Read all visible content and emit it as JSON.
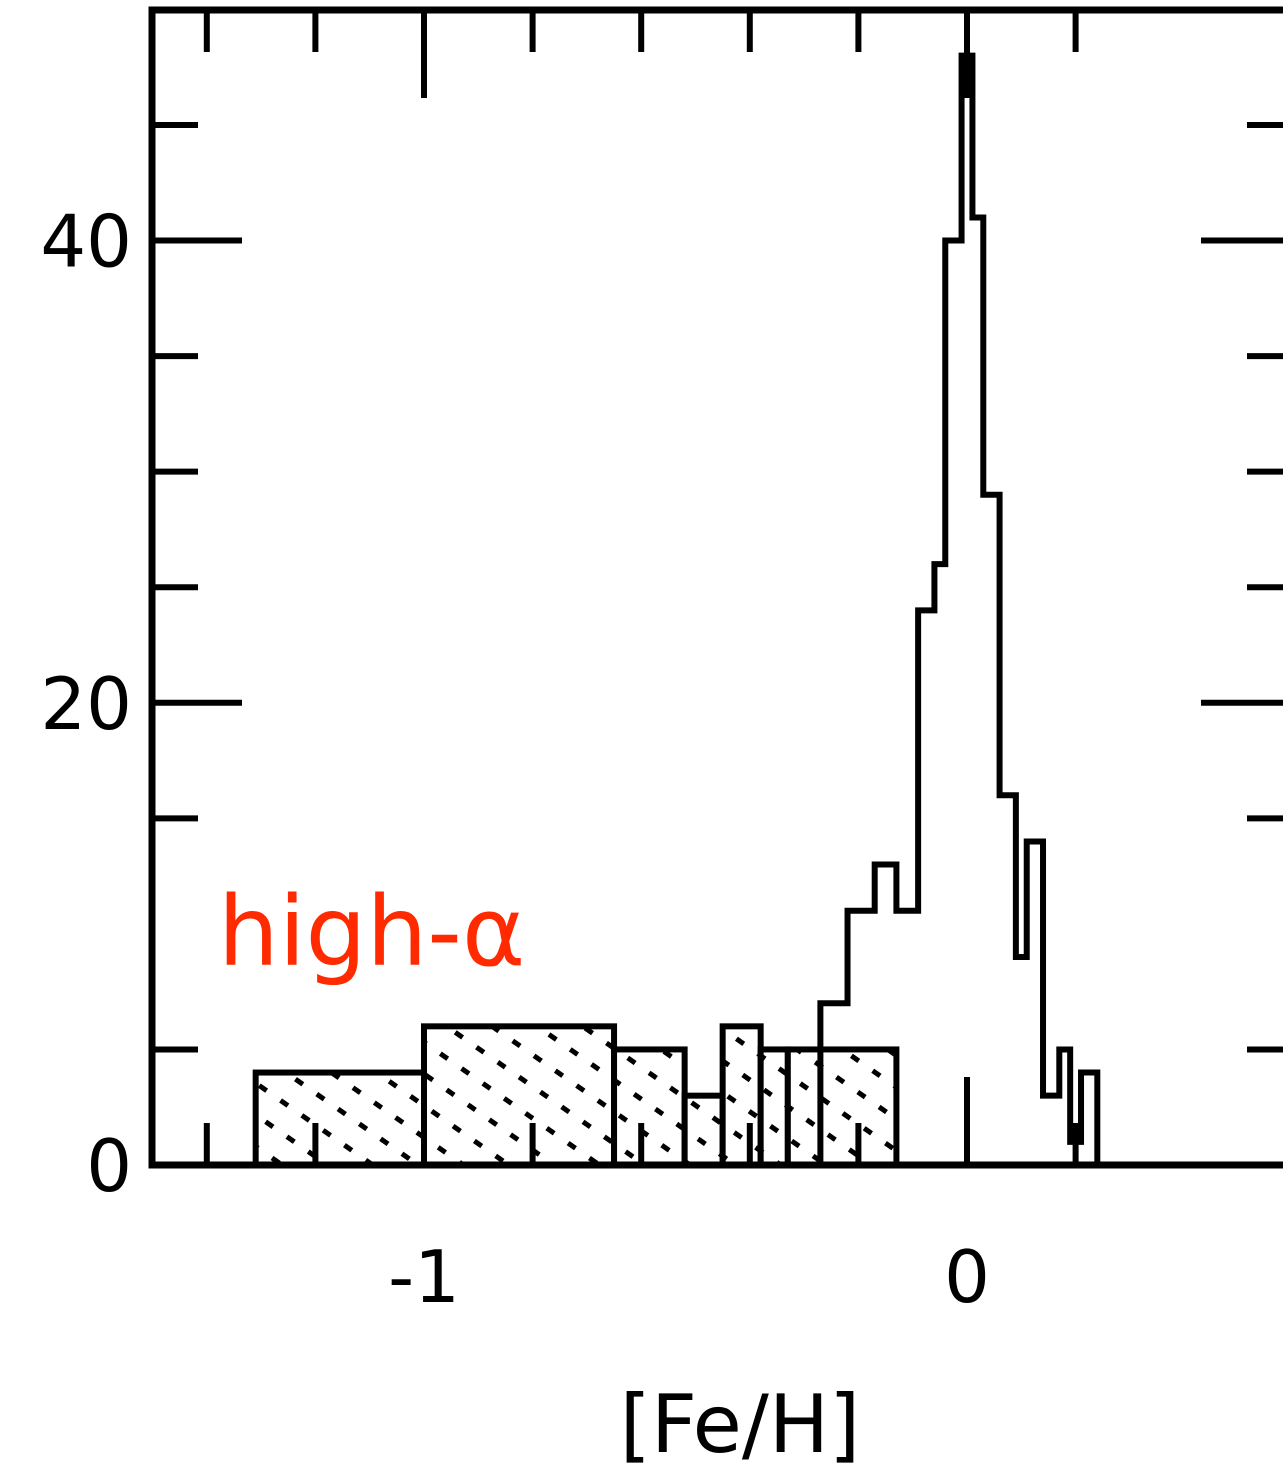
{
  "chart_data": {
    "type": "histogram",
    "xlabel": "[Fe/H]",
    "ylabel": "",
    "xlim": [
      -1.75,
      0.3
    ],
    "ylim": [
      0,
      50
    ],
    "x_ticks": [
      {
        "value": -1,
        "label": "-1"
      },
      {
        "value": 0,
        "label": "0"
      }
    ],
    "y_ticks": [
      {
        "value": 0,
        "label": "0"
      },
      {
        "value": 20,
        "label": "20"
      },
      {
        "value": 40,
        "label": "40"
      }
    ],
    "annotation": {
      "text": "high-α",
      "color": "#ff2a00"
    },
    "series": [
      {
        "style": "open",
        "bins": [
          {
            "x0": -0.27,
            "x1": -0.22,
            "y": 7
          },
          {
            "x0": -0.22,
            "x1": -0.17,
            "y": 11
          },
          {
            "x0": -0.17,
            "x1": -0.13,
            "y": 13
          },
          {
            "x0": -0.13,
            "x1": -0.09,
            "y": 11
          },
          {
            "x0": -0.09,
            "x1": -0.06,
            "y": 24
          },
          {
            "x0": -0.06,
            "x1": -0.04,
            "y": 26
          },
          {
            "x0": -0.04,
            "x1": -0.01,
            "y": 40
          },
          {
            "x0": -0.01,
            "x1": 0.01,
            "y": 48
          },
          {
            "x0": 0.01,
            "x1": 0.03,
            "y": 41
          },
          {
            "x0": 0.03,
            "x1": 0.06,
            "y": 29
          },
          {
            "x0": 0.06,
            "x1": 0.09,
            "y": 16
          },
          {
            "x0": 0.09,
            "x1": 0.11,
            "y": 9
          },
          {
            "x0": 0.11,
            "x1": 0.14,
            "y": 14
          },
          {
            "x0": 0.14,
            "x1": 0.17,
            "y": 3
          },
          {
            "x0": 0.17,
            "x1": 0.19,
            "y": 5
          },
          {
            "x0": 0.19,
            "x1": 0.21,
            "y": 1
          },
          {
            "x0": 0.21,
            "x1": 0.24,
            "y": 4
          }
        ]
      },
      {
        "style": "hatched",
        "bins": [
          {
            "x0": -1.31,
            "x1": -1.0,
            "y": 4
          },
          {
            "x0": -1.0,
            "x1": -0.65,
            "y": 6
          },
          {
            "x0": -0.65,
            "x1": -0.52,
            "y": 5
          },
          {
            "x0": -0.52,
            "x1": -0.45,
            "y": 3
          },
          {
            "x0": -0.45,
            "x1": -0.38,
            "y": 6
          },
          {
            "x0": -0.38,
            "x1": -0.33,
            "y": 5
          },
          {
            "x0": -0.33,
            "x1": -0.13,
            "y": 5
          }
        ]
      }
    ]
  }
}
